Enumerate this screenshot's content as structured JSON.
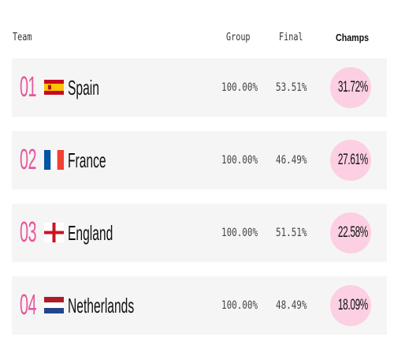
{
  "header": {
    "team": "Team",
    "group": "Group",
    "final": "Final",
    "champs": "Champs"
  },
  "colors": {
    "rank": "#e8569a",
    "pill": "#fccfe2",
    "row_bg": "#f5f5f5"
  },
  "rows": [
    {
      "rank": "01",
      "team": "Spain",
      "flag": "spain-flag-icon",
      "group": "100.00%",
      "final": "53.51%",
      "champs": "31.72%"
    },
    {
      "rank": "02",
      "team": "France",
      "flag": "france-flag-icon",
      "group": "100.00%",
      "final": "46.49%",
      "champs": "27.61%"
    },
    {
      "rank": "03",
      "team": "England",
      "flag": "england-flag-icon",
      "group": "100.00%",
      "final": "51.51%",
      "champs": "22.58%"
    },
    {
      "rank": "04",
      "team": "Netherlands",
      "flag": "netherlands-flag-icon",
      "group": "100.00%",
      "final": "48.49%",
      "champs": "18.09%"
    }
  ]
}
